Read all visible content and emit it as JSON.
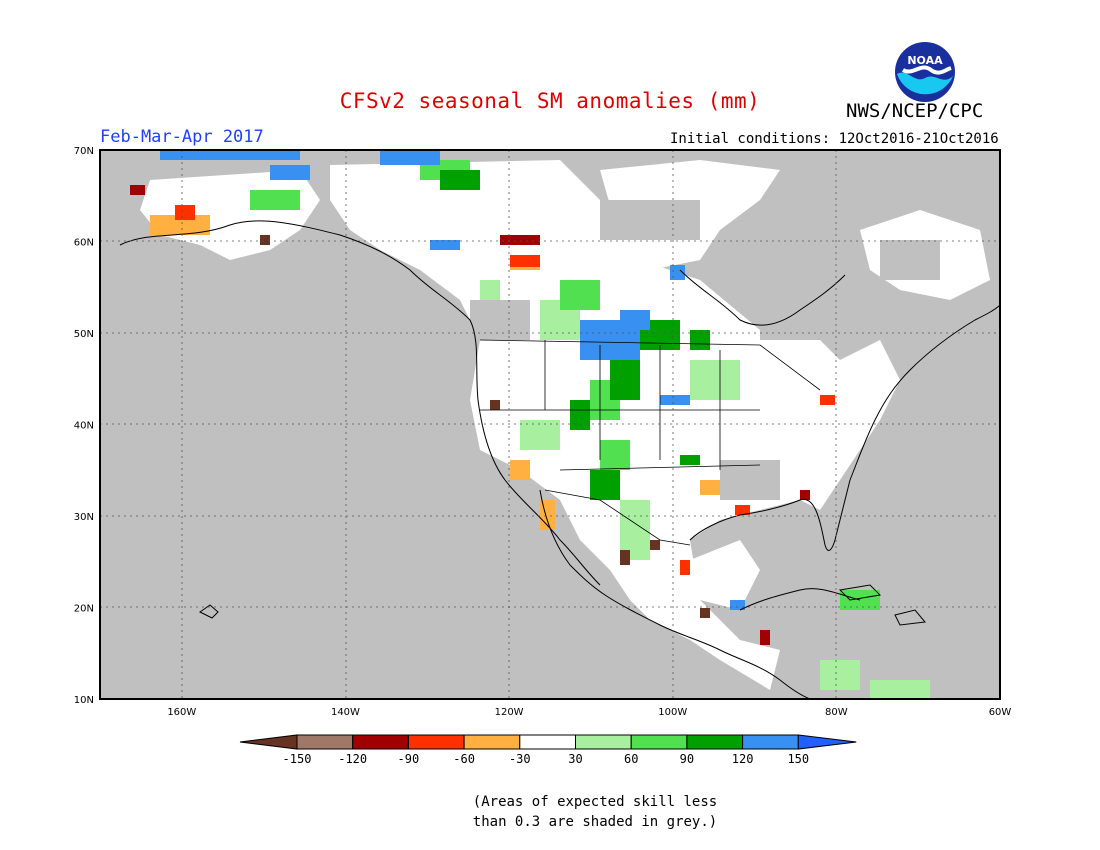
{
  "header": {
    "title": "CFSv2 seasonal SM anomalies (mm)",
    "agency": "NWS/NCEP/CPC",
    "logo_text": "NOAA",
    "season": "Feb-Mar-Apr 2017",
    "initial_conditions": "Initial conditions: 12Oct2016-21Oct2016"
  },
  "map": {
    "lon_labels": [
      "160W",
      "140W",
      "120W",
      "100W",
      "80W",
      "60W"
    ],
    "lat_labels": [
      "70N",
      "60N",
      "50N",
      "40N",
      "30N",
      "20N",
      "10N"
    ],
    "lon_range": [
      -170,
      -60
    ],
    "lat_range": [
      10,
      70
    ]
  },
  "colorbar": {
    "labels": [
      "-150",
      "-120",
      "-90",
      "-60",
      "-30",
      "30",
      "60",
      "90",
      "120",
      "150"
    ],
    "colors": [
      "#663322",
      "#a07868",
      "#a00000",
      "#ff3000",
      "#ffb040",
      "#ffffff",
      "#a8f0a0",
      "#50e050",
      "#00a000",
      "#3890f0",
      "#2060ff"
    ]
  },
  "note": {
    "line1": "(Areas of expected skill less",
    "line2": "than 0.3 are shaded in grey.)"
  },
  "colors": {
    "grey_skill": "#c0c0c0",
    "title": "#e00000",
    "season": "#1f3fff"
  }
}
